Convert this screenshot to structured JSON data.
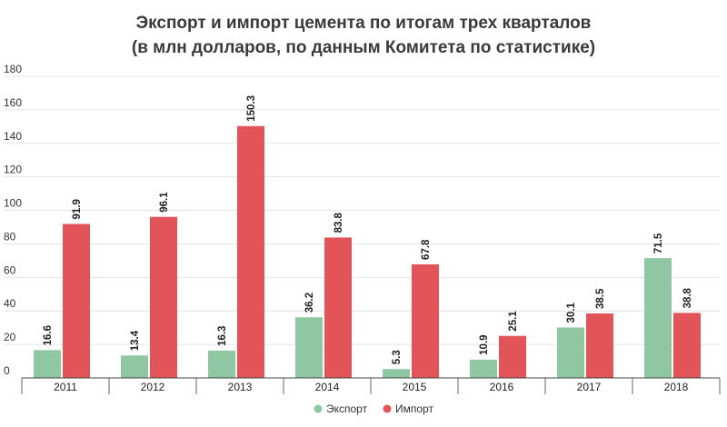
{
  "chart_data": {
    "type": "bar",
    "title": "Экспорт и импорт цемента по итогам трех кварталов",
    "subtitle": "(в млн долларов, по данным Комитета по статистике)",
    "categories": [
      "2011",
      "2012",
      "2013",
      "2014",
      "2015",
      "2016",
      "2017",
      "2018"
    ],
    "series": [
      {
        "name": "Экспорт",
        "color": "#8fc7a3",
        "values": [
          16.6,
          13.4,
          16.3,
          36.2,
          5.3,
          10.9,
          30.1,
          71.5
        ]
      },
      {
        "name": "Импорт",
        "color": "#e25457",
        "values": [
          91.9,
          96.1,
          150.3,
          83.8,
          67.8,
          25.1,
          38.5,
          38.8
        ]
      }
    ],
    "ylim": [
      0,
      180
    ],
    "yticks": [
      0,
      20,
      40,
      60,
      80,
      100,
      120,
      140,
      160,
      180
    ],
    "grid": true,
    "legend": "bottom-center",
    "data_labels": true
  }
}
